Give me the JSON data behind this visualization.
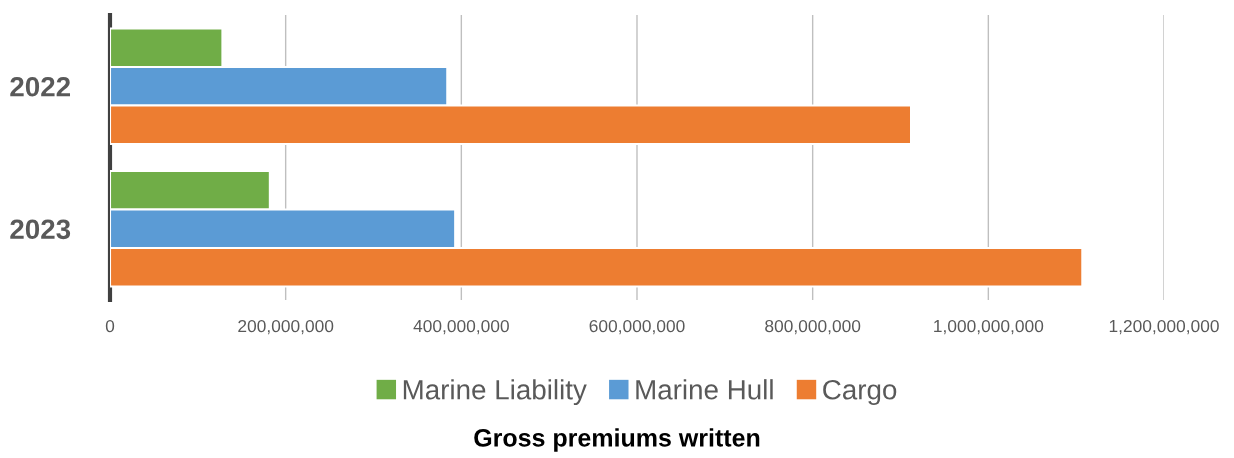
{
  "chart_data": {
    "type": "bar",
    "orientation": "horizontal",
    "title": "Gross premiums written",
    "categories": [
      "2022",
      "2023"
    ],
    "series": [
      {
        "name": "Marine Liability",
        "color": "#70ad47",
        "values": [
          128000000,
          182000000
        ]
      },
      {
        "name": "Marine Hull",
        "color": "#5b9bd5",
        "values": [
          384000000,
          393000000
        ]
      },
      {
        "name": "Cargo",
        "color": "#ed7d31",
        "values": [
          912000000,
          1107000000
        ]
      }
    ],
    "xlim": [
      0,
      1200000000
    ],
    "xticks": [
      0,
      {
        "value": 200000000,
        "label": "200,000,000"
      },
      {
        "value": 400000000,
        "label": "400,000,000"
      },
      {
        "value": 600000000,
        "label": "600,000,000"
      },
      {
        "value": 800000000,
        "label": "800,000,000"
      },
      {
        "value": 1000000000,
        "label": "1,000,000,000"
      },
      {
        "value": 1200000000,
        "label": "1,200,000,000"
      }
    ],
    "grid": "x",
    "legend": "bottom"
  }
}
